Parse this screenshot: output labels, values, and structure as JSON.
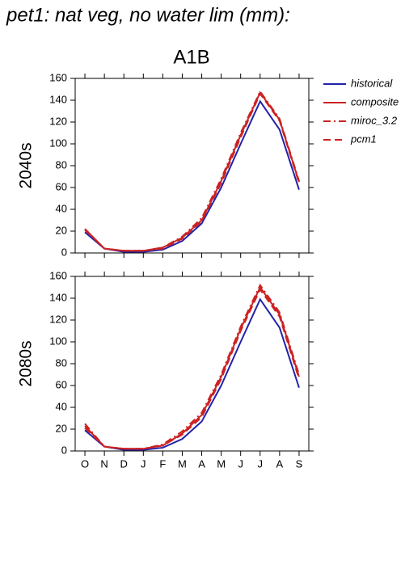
{
  "title": "pet1: nat veg, no water lim (mm):",
  "subtitle": "A1B",
  "chart_data": [
    {
      "type": "line",
      "ylabel": "2040s",
      "ylim": [
        0,
        160
      ],
      "yticks": [
        0,
        20,
        40,
        60,
        80,
        100,
        120,
        140,
        160
      ],
      "legend": "right",
      "series": [
        {
          "name": "historical",
          "color": "#2222aa",
          "dash": "solid",
          "values": [
            19,
            4,
            1,
            1,
            3,
            11,
            27,
            60,
            100,
            139,
            113,
            58
          ]
        },
        {
          "name": "composite",
          "color": "#cc2222",
          "dash": "solid",
          "values": [
            22,
            4,
            2,
            2,
            5,
            14,
            30,
            66,
            108,
            147,
            122,
            65
          ]
        },
        {
          "name": "miroc_3.2",
          "color": "#cc2222",
          "dash": "dashdot",
          "values": [
            22,
            4,
            2,
            2,
            5,
            15,
            32,
            68,
            110,
            148,
            123,
            66
          ]
        },
        {
          "name": "pcm1",
          "color": "#cc2222",
          "dash": "dashed",
          "values": [
            21,
            4,
            2,
            2,
            4,
            13,
            29,
            64,
            106,
            146,
            121,
            64
          ]
        }
      ]
    },
    {
      "type": "line",
      "ylabel": "2080s",
      "ylim": [
        0,
        160
      ],
      "yticks": [
        0,
        20,
        40,
        60,
        80,
        100,
        120,
        140,
        160
      ],
      "categories": [
        "O",
        "N",
        "D",
        "J",
        "F",
        "M",
        "A",
        "M",
        "J",
        "J",
        "A",
        "S"
      ],
      "series": [
        {
          "color": "#2222aa",
          "dash": "solid",
          "values": [
            19,
            4,
            1,
            1,
            3,
            11,
            27,
            60,
            100,
            139,
            113,
            58
          ]
        },
        {
          "color": "#cc2222",
          "dash": "solid",
          "values": [
            23,
            4,
            2,
            2,
            5,
            16,
            33,
            68,
            112,
            150,
            125,
            68
          ]
        },
        {
          "color": "#cc2222",
          "dash": "dashdot",
          "values": [
            25,
            4,
            2,
            2,
            6,
            18,
            35,
            70,
            114,
            152,
            127,
            70
          ]
        },
        {
          "color": "#cc2222",
          "dash": "dashed",
          "values": [
            21,
            4,
            2,
            2,
            5,
            15,
            31,
            66,
            110,
            148,
            123,
            66
          ]
        }
      ]
    }
  ]
}
